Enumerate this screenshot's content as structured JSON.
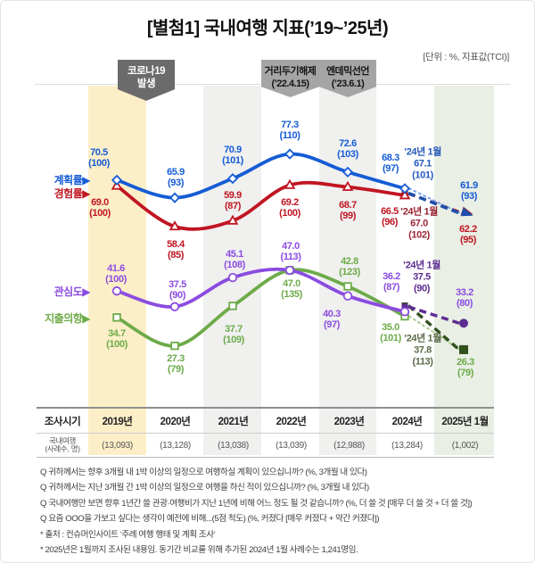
{
  "page": {
    "title": "[별첨1] 국내여행 지표(’19~’25년)",
    "unit_note": "[단위 : %, 지표값(TCI)]"
  },
  "badges": [
    {
      "id": "covid-outbreak",
      "lines": [
        "코로나19",
        "발생"
      ],
      "variant": "dark"
    },
    {
      "id": "distancing-lifted",
      "lines": [
        "거리두기해제",
        "(’22.4.15)"
      ],
      "variant": "light"
    },
    {
      "id": "endemic-declared",
      "lines": [
        "엔데믹선언",
        "(’23.6.1)"
      ],
      "variant": "light"
    }
  ],
  "chart_data": {
    "type": "line",
    "title": "[별첨1] 국내여행 지표(’19~’25년)",
    "unit": "%, 지표값(TCI)",
    "categories": [
      "2019년",
      "2020년",
      "2021년",
      "2022년",
      "2023년",
      "2024년",
      "2025년 1월"
    ],
    "ylim": [
      20,
      85
    ],
    "grid": false,
    "legend_position": "left",
    "legend_suffix": "▶",
    "series": [
      {
        "name": "계획률",
        "marker": "diamond",
        "end_marker": "arrow",
        "color": "#155cd5",
        "dark_color": "#1c4fae",
        "light_color": "#7da3e8",
        "jan_color": "#2458bb",
        "values": [
          70.5,
          65.9,
          70.9,
          77.3,
          72.6,
          68.3,
          61.9
        ],
        "tci": [
          100,
          93,
          101,
          110,
          103,
          97,
          93
        ],
        "jan_2024": {
          "label": "’24년 1월",
          "value": 67.1,
          "tci": 101
        }
      },
      {
        "name": "경험률",
        "marker": "triangle",
        "end_marker": "arrow",
        "color": "#c11522",
        "dark_color": "#8e2132",
        "light_color": "#d98a93",
        "jan_color": "#9a2433",
        "values": [
          69.0,
          58.4,
          59.9,
          69.2,
          68.7,
          66.5,
          62.2
        ],
        "tci": [
          100,
          85,
          87,
          100,
          99,
          96,
          95
        ],
        "jan_2024": {
          "label": "’24년 1월",
          "value": 67.0,
          "tci": 102
        }
      },
      {
        "name": "관심도",
        "marker": "circle",
        "end_marker": "dot",
        "color": "#8b4ce0",
        "dark_color": "#5c2d91",
        "light_color": "#c2a3ea",
        "jan_color": "#5c2d91",
        "values": [
          41.6,
          37.5,
          45.1,
          47.0,
          40.3,
          36.2,
          33.2
        ],
        "tci": [
          100,
          90,
          108,
          113,
          97,
          87,
          80
        ],
        "jan_2024": {
          "label": "’24년 1월",
          "value": 37.5,
          "tci": 90
        }
      },
      {
        "name": "지출의향",
        "marker": "square",
        "end_marker": "square",
        "color": "#6dab49",
        "dark_color": "#31511d",
        "light_color": "#a9cb8b",
        "jan_color": "#5b6b4a",
        "values": [
          34.7,
          27.3,
          37.7,
          47.0,
          42.8,
          35.0,
          26.3
        ],
        "tci": [
          100,
          79,
          109,
          135,
          123,
          101,
          79
        ],
        "jan_2024": {
          "label": "’24년 1월",
          "value": 37.8,
          "tci": 113
        }
      }
    ]
  },
  "table": {
    "header": [
      "조사시기",
      "2019년",
      "2020년",
      "2021년",
      "2022년",
      "2023년",
      "2024년",
      "2025년 1월"
    ],
    "row_label_lines": [
      "국내여행",
      "(사례수, 명)"
    ],
    "row_values": [
      "(13,093)",
      "(13,128)",
      "(13,038)",
      "(13,039)",
      "(12,988)",
      "(13,284)",
      "(1,002)"
    ]
  },
  "footnotes": [
    "Q 귀하께서는 향후 3개월 내 1박 이상의 일정으로 여행하실 계획이 있으십니까? (%, 3개월 내 있다)",
    "Q 귀하께서는 지난 3개월 간 1박 이상의 일정으로 여행을 하신 적이 있으십니까? (%, 3개월 내 있다)",
    "Q 국내여행만 보면 향후 1년간 쓸 관광·여행비가 지난 1년에 비해 어느 정도 될 것 같습니까? (%, 더 쓸 것 [매우 더 쓸 것 + 더 쓸 것])",
    "Q 요즘 OOO을 가보고 싶다는 생각이 예전에 비해...(5점 척도) (%, 커졌다 [매우 커졌다 + 약간 커졌다])",
    "* 출처 : 컨슈머인사이트 ‘주례 여행 행태 및 계획 조사’",
    "* 2025년은 1월까지 조사된 내용임. 동기간 비교를 위해 추가된 2024년 1월 사례수는 1,241명임."
  ],
  "colors": {
    "band_2019": "#fcefc8",
    "band_gray": "#f0f0ef",
    "band_2025": "#e9efe4",
    "badge_dark": "#6b6b6b",
    "badge_light": "#a5a5a5"
  }
}
